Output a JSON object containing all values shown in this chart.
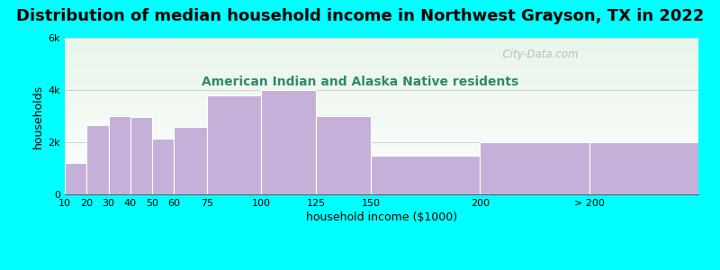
{
  "title": "Distribution of median household income in Northwest Grayson, TX in 2022",
  "subtitle": "American Indian and Alaska Native residents",
  "xlabel": "household income ($1000)",
  "ylabel": "households",
  "background_color": "#00FFFF",
  "plot_bg_top": "#e8f5e9",
  "plot_bg_bottom": "#f8fff8",
  "bar_color": "#C4B0D8",
  "bar_edge_color": "#ffffff",
  "bar_labels": [
    "10",
    "20",
    "30",
    "40",
    "50",
    "60",
    "75",
    "100",
    "125",
    "150",
    "200",
    "> 200"
  ],
  "bar_values": [
    1200,
    2650,
    3000,
    2950,
    2150,
    2600,
    3800,
    4000,
    3000,
    1500,
    2000,
    2000
  ],
  "ylim": [
    0,
    6000
  ],
  "yticks": [
    0,
    2000,
    4000,
    6000
  ],
  "ytick_labels": [
    "0",
    "2k",
    "4k",
    "6k"
  ],
  "title_fontsize": 13,
  "subtitle_fontsize": 10,
  "title_color": "#000000",
  "subtitle_color": "#2E8B6A",
  "axis_label_fontsize": 9,
  "tick_fontsize": 8,
  "watermark_text": "  City-Data.com",
  "watermark_color": "#aaaaaa",
  "left_edges": [
    10,
    20,
    30,
    40,
    50,
    60,
    75,
    100,
    125,
    150,
    200,
    250
  ],
  "widths": [
    10,
    10,
    10,
    10,
    10,
    15,
    25,
    25,
    25,
    50,
    50,
    50
  ],
  "xlim": [
    10,
    300
  ]
}
